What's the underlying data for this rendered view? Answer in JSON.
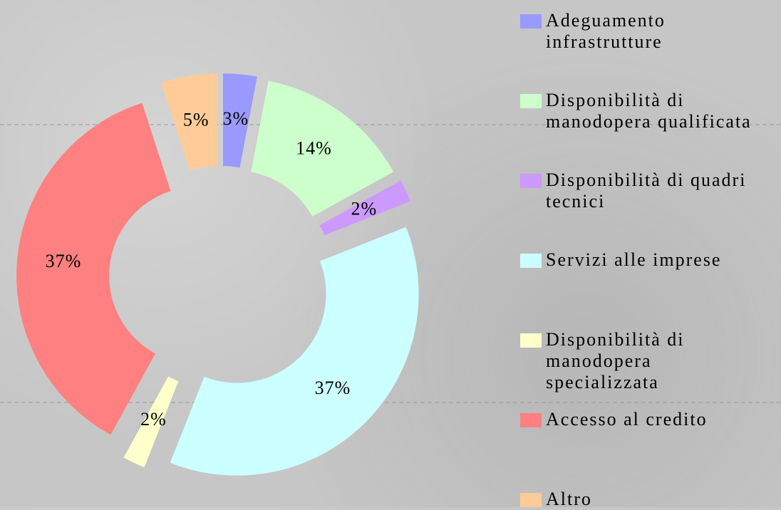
{
  "chart_data": {
    "type": "doughnut",
    "categories": [
      "Adeguamento infrastrutture",
      "Disponibilità di manodopera qualificata",
      "Disponibilità di quadri tecnici",
      "Servizi alle imprese",
      "Disponibilità di manodopera specializzata",
      "Accesso al credito",
      "Altro"
    ],
    "values": [
      3,
      14,
      2,
      37,
      2,
      37,
      5
    ],
    "value_labels": [
      "3%",
      "14%",
      "2%",
      "37%",
      "2%",
      "37%",
      "5%"
    ],
    "colors": [
      "#9999ff",
      "#ccffcc",
      "#cc99ff",
      "#ccffff",
      "#ffffcc",
      "#ff8080",
      "#ffcc99"
    ],
    "legend": "right"
  }
}
